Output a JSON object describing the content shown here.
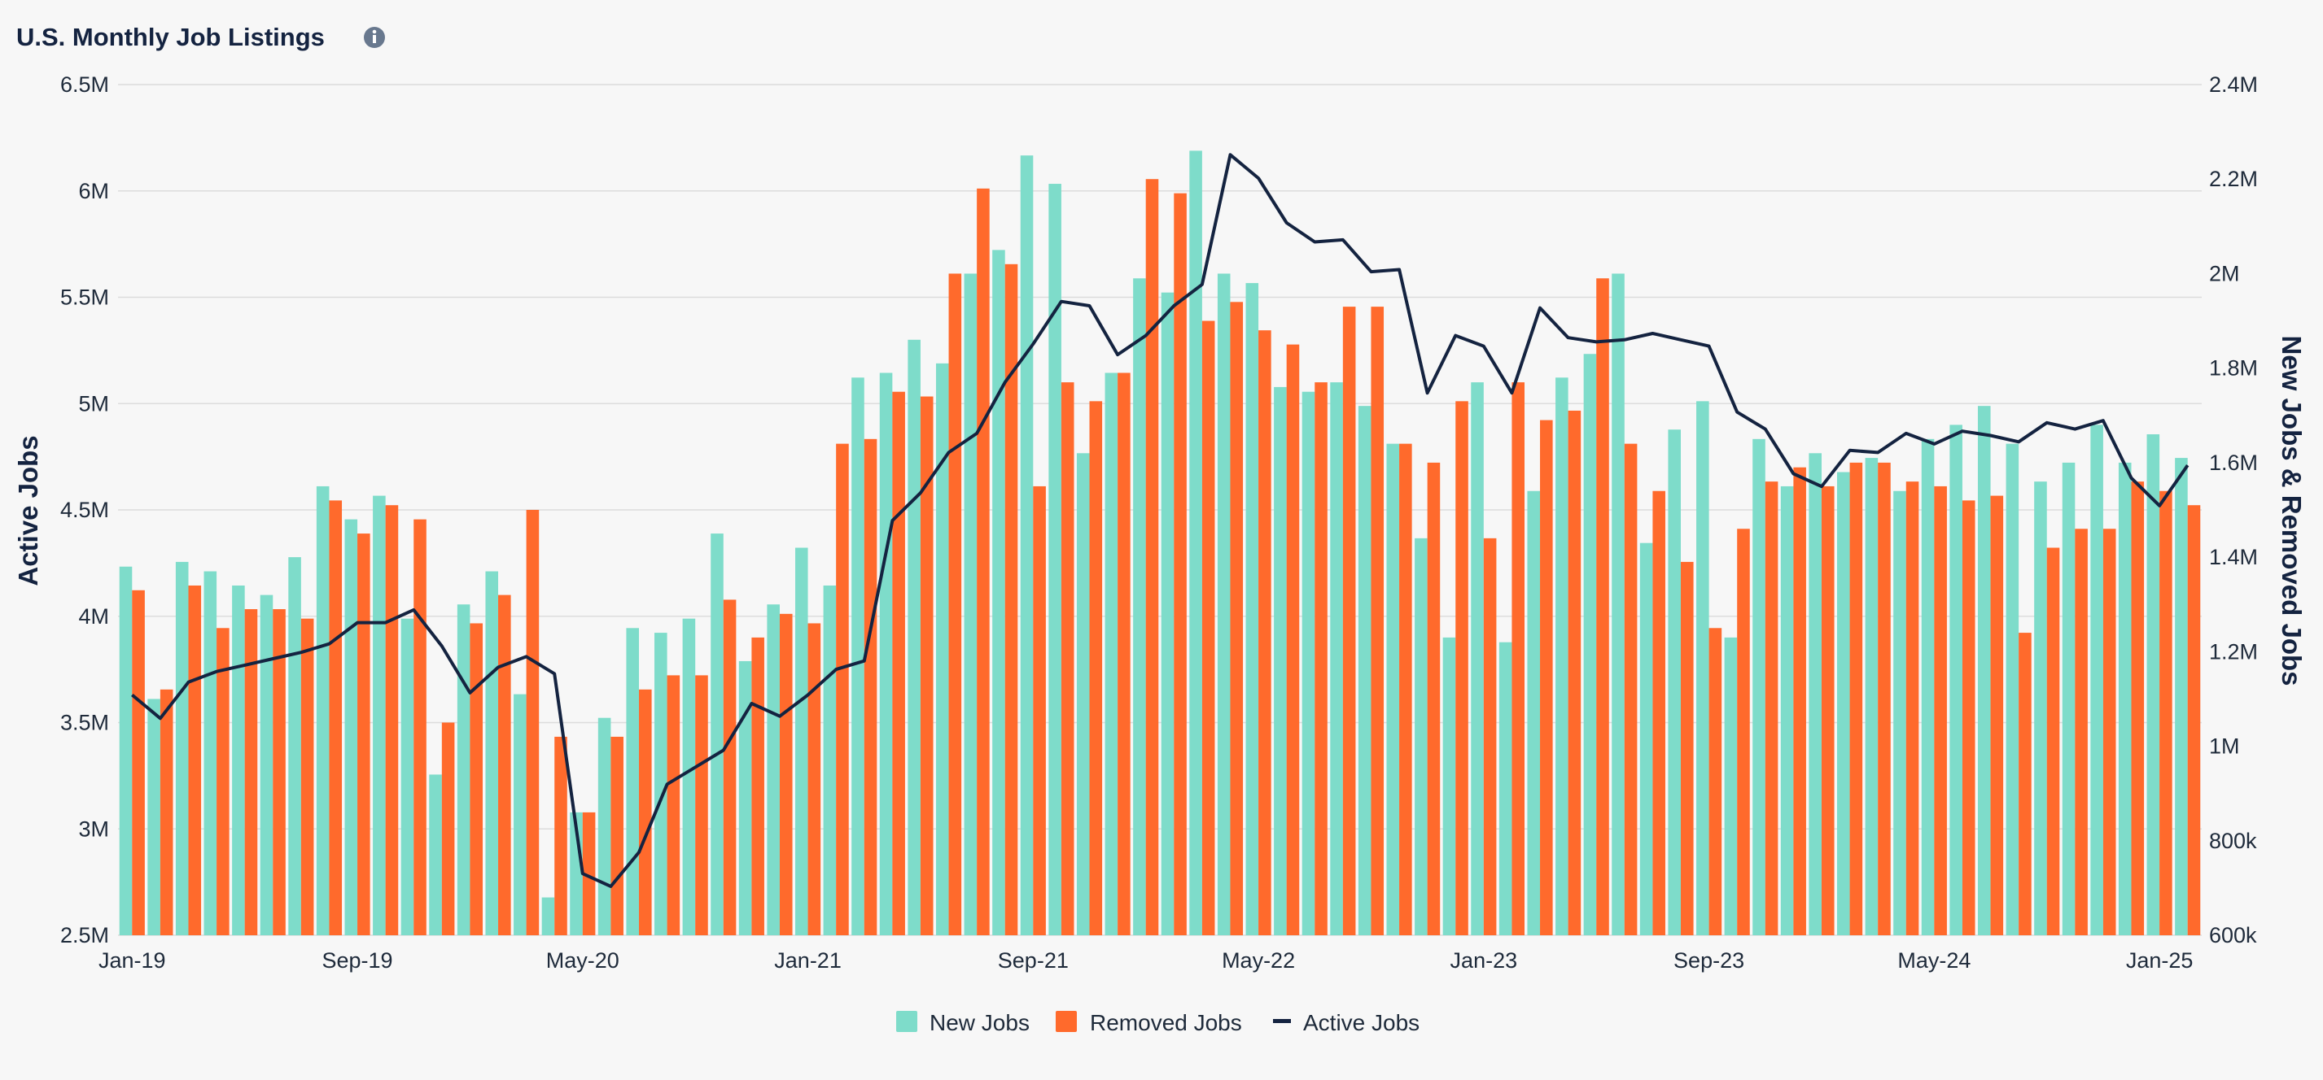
{
  "chart_data": {
    "type": "bar",
    "title": "U.S. Monthly Job Listings",
    "info_icon": "info-icon",
    "ylabel_left": "Active Jobs",
    "ylabel_right": "New Jobs & Removed Jobs",
    "ylim_left": [
      2500000,
      6500000
    ],
    "ylim_right": [
      600000,
      2400000
    ],
    "left_ticks": [
      "2.5M",
      "3M",
      "3.5M",
      "4M",
      "4.5M",
      "5M",
      "5.5M",
      "6M",
      "6.5M"
    ],
    "right_ticks": [
      "600k",
      "800k",
      "1M",
      "1.2M",
      "1.4M",
      "1.6M",
      "1.8M",
      "2M",
      "2.2M",
      "2.4M"
    ],
    "x_ticks": [
      "Jan-19",
      "Sep-19",
      "May-20",
      "Jan-21",
      "Sep-21",
      "May-22",
      "Jan-23",
      "Sep-23",
      "May-24",
      "Jan-25"
    ],
    "grid": true,
    "legend_position": "bottom",
    "colors": {
      "new_jobs": "#7edcca",
      "removed_jobs": "#ff6a2c",
      "active_jobs": "#142340"
    },
    "series": [
      {
        "name": "New Jobs",
        "axis": "right",
        "values": [
          1380000,
          1100000,
          1390000,
          1370000,
          1340000,
          1320000,
          1400000,
          1550000,
          1480000,
          1530000,
          1270000,
          940000,
          1300000,
          1370000,
          1110000,
          680000,
          860000,
          1060000,
          1250000,
          1240000,
          1270000,
          1450000,
          1180000,
          1300000,
          1420000,
          1340000,
          1780000,
          1790000,
          1860000,
          1810000,
          2000000,
          2050000,
          2250000,
          2190000,
          1620000,
          1790000,
          1990000,
          1960000,
          2260000,
          2000000,
          1980000,
          1760000,
          1750000,
          1770000,
          1720000,
          1640000,
          1440000,
          1230000,
          1770000,
          1220000,
          1540000,
          1780000,
          1830000,
          2000000,
          1430000,
          1670000,
          1730000,
          1230000,
          1650000,
          1550000,
          1620000,
          1580000,
          1610000,
          1540000,
          1650000,
          1680000,
          1720000,
          1640000,
          1560000,
          1600000,
          1680000,
          1600000,
          1660000,
          1610000
        ]
      },
      {
        "name": "Removed Jobs",
        "axis": "right",
        "values": [
          1330000,
          1120000,
          1340000,
          1250000,
          1290000,
          1290000,
          1270000,
          1520000,
          1450000,
          1510000,
          1480000,
          1050000,
          1260000,
          1320000,
          1500000,
          1020000,
          860000,
          1020000,
          1120000,
          1150000,
          1150000,
          1310000,
          1230000,
          1280000,
          1260000,
          1640000,
          1650000,
          1750000,
          1740000,
          2000000,
          2180000,
          2020000,
          1550000,
          1770000,
          1730000,
          1790000,
          2200000,
          2170000,
          1900000,
          1940000,
          1880000,
          1850000,
          1770000,
          1930000,
          1930000,
          1640000,
          1600000,
          1730000,
          1440000,
          1770000,
          1690000,
          1710000,
          1990000,
          1640000,
          1540000,
          1390000,
          1250000,
          1460000,
          1560000,
          1590000,
          1550000,
          1600000,
          1600000,
          1560000,
          1550000,
          1520000,
          1530000,
          1240000,
          1420000,
          1460000,
          1460000,
          1560000,
          1540000,
          1510000
        ]
      },
      {
        "name": "Active Jobs",
        "axis": "left",
        "type": "line",
        "values": [
          3630000,
          3520000,
          3690000,
          3740000,
          3770000,
          3800000,
          3830000,
          3870000,
          3970000,
          3970000,
          4030000,
          3860000,
          3640000,
          3760000,
          3810000,
          3730000,
          2790000,
          2730000,
          2890000,
          3210000,
          3290000,
          3370000,
          3590000,
          3530000,
          3630000,
          3750000,
          3790000,
          4450000,
          4580000,
          4770000,
          4860000,
          5100000,
          5280000,
          5480000,
          5460000,
          5230000,
          5320000,
          5460000,
          5560000,
          6170000,
          6060000,
          5850000,
          5760000,
          5770000,
          5620000,
          5630000,
          5050000,
          5320000,
          5270000,
          5050000,
          5450000,
          5310000,
          5290000,
          5300000,
          5330000,
          5300000,
          5270000,
          4960000,
          4880000,
          4670000,
          4610000,
          4780000,
          4770000,
          4860000,
          4810000,
          4870000,
          4850000,
          4820000,
          4910000,
          4880000,
          4920000,
          4650000,
          4520000,
          4710000
        ]
      }
    ]
  },
  "legend": {
    "items": [
      {
        "label": "New Jobs",
        "color": "#7edcca"
      },
      {
        "label": "Removed Jobs",
        "color": "#ff6a2c"
      },
      {
        "label": "Active Jobs",
        "color": "#142340"
      }
    ]
  }
}
